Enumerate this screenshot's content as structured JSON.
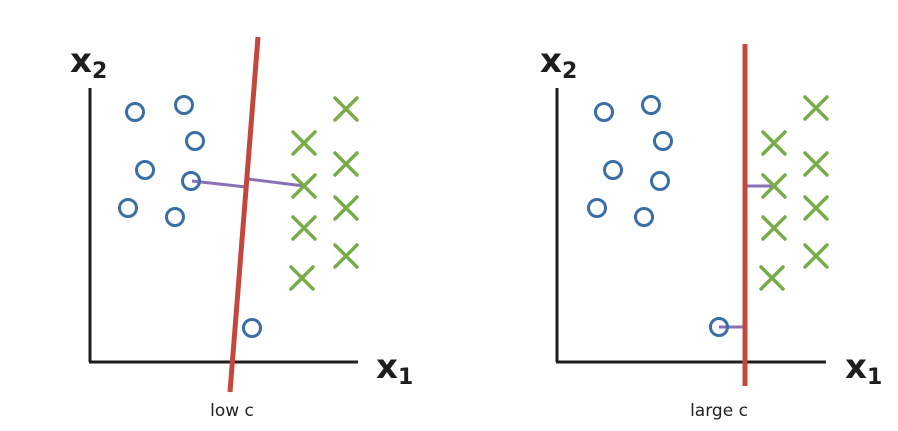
{
  "colors": {
    "axis": "#1e1e1e",
    "circle": "#3a6ea5",
    "cross": "#7aab4a",
    "boundary": "#c4473d",
    "margin": "#8a70b5"
  },
  "panels": [
    {
      "id": "left",
      "caption": "low c",
      "x_label": "x",
      "x_sub": "1",
      "y_label": "x",
      "y_sub": "2"
    },
    {
      "id": "right",
      "caption": "large c",
      "x_label": "x",
      "x_sub": "1",
      "y_label": "x",
      "y_sub": "2"
    }
  ]
}
